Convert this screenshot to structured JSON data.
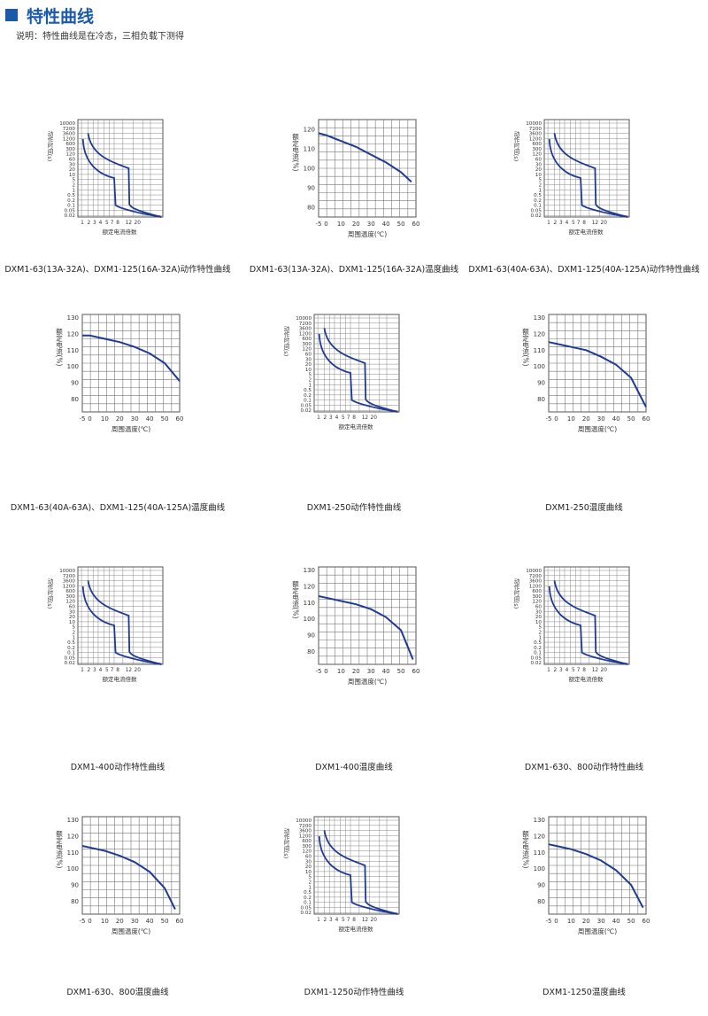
{
  "header": {
    "title": "特性曲线"
  },
  "subtitle": "说明：特性曲线是在冷态，三相负载下测得",
  "trip_axis": {
    "y_ticks": [
      "10000",
      "7200",
      "3600",
      "1200",
      "600",
      "300",
      "120",
      "60",
      "30",
      "20",
      "10",
      "5",
      "2",
      "1",
      "0.5",
      "0.2",
      "0.1",
      "0.05",
      "0.02"
    ],
    "y_label": "动作时间(s)",
    "x_ticks": [
      "1",
      "2",
      "3",
      "4",
      "5",
      "7",
      "8",
      "12",
      "20"
    ],
    "x_label": "额定电流倍数"
  },
  "temp_axis": {
    "x_label": "周围温度(℃)",
    "y_label": "额定电流(%)"
  },
  "panels": [
    {
      "type": "trip",
      "caption": "DXM1-63(13A-32A)、DXM1-125(16A-32A)动作特性曲线",
      "x_ticks": [
        "1",
        "2",
        "3",
        "4",
        "5",
        "7",
        "8",
        "12",
        "20"
      ],
      "y_ticks": [
        "10000",
        "7200",
        "3600",
        "1200",
        "600",
        "300",
        "120",
        "60",
        "30",
        "20",
        "10",
        "5",
        "2",
        "1",
        "0.5",
        "0.2",
        "0.1",
        "0.05",
        "0.02"
      ]
    },
    {
      "type": "temp",
      "caption": "DXM1-63(13A-32A)、DXM1-125(16A-32A)温度曲线",
      "x_ticks": [
        "-5",
        "0",
        "10",
        "20",
        "30",
        "40",
        "50",
        "60"
      ],
      "y_ticks": [
        "120",
        "110",
        "100",
        "90",
        "80"
      ],
      "chart_data": {
        "type": "line",
        "x": [
          -5,
          0,
          10,
          20,
          30,
          40,
          50,
          57
        ],
        "y": [
          118,
          117,
          114,
          111,
          107,
          103,
          98,
          93
        ],
        "xlim": [
          -5,
          60
        ],
        "ylim": [
          75,
          125
        ]
      }
    },
    {
      "type": "trip",
      "caption": "DXM1-63(40A-63A)、DXM1-125(40A-125A)动作特性曲线",
      "x_ticks": [
        "1",
        "2",
        "3",
        "4",
        "5",
        "7",
        "8",
        "12",
        "20"
      ],
      "y_ticks": [
        "10000",
        "7200",
        "3600",
        "1200",
        "600",
        "300",
        "120",
        "60",
        "30",
        "20",
        "10",
        "5",
        "2",
        "1",
        "0.5",
        "0.2",
        "0.1",
        "0.05",
        "0.02"
      ]
    },
    {
      "type": "temp",
      "caption": "DXM1-63(40A-63A)、DXM1-125(40A-125A)温度曲线",
      "x_ticks": [
        "-5",
        "0",
        "10",
        "20",
        "30",
        "40",
        "50",
        "60"
      ],
      "y_ticks": [
        "130",
        "120",
        "110",
        "100",
        "90",
        "80"
      ],
      "chart_data": {
        "type": "line",
        "x": [
          -5,
          0,
          10,
          20,
          30,
          40,
          50,
          60
        ],
        "y": [
          119,
          119,
          117,
          115,
          112,
          108,
          102,
          91
        ],
        "xlim": [
          -5,
          60
        ],
        "ylim": [
          72,
          132
        ]
      }
    },
    {
      "type": "trip",
      "caption": "DXM1-250动作特性曲线",
      "x_ticks": [
        "1",
        "2",
        "3",
        "4",
        "5",
        "7",
        "8",
        "12",
        "20"
      ],
      "y_ticks": [
        "10000",
        "7200",
        "3600",
        "1200",
        "600",
        "300",
        "120",
        "60",
        "30",
        "20",
        "10",
        "5",
        "2",
        "1",
        "0.5",
        "0.2",
        "0.1",
        "0.05",
        "0.02"
      ]
    },
    {
      "type": "temp",
      "caption": "DXM1-250温度曲线",
      "x_ticks": [
        "-5",
        "0",
        "10",
        "20",
        "30",
        "40",
        "50",
        "60"
      ],
      "y_ticks": [
        "130",
        "120",
        "110",
        "100",
        "90",
        "80"
      ],
      "chart_data": {
        "type": "line",
        "x": [
          -5,
          0,
          10,
          20,
          30,
          40,
          50,
          60
        ],
        "y": [
          115,
          114,
          112,
          110,
          106,
          101,
          93,
          75
        ],
        "xlim": [
          -5,
          60
        ],
        "ylim": [
          72,
          132
        ]
      }
    },
    {
      "type": "trip",
      "caption": "DXM1-400动作特性曲线",
      "x_ticks": [
        "1",
        "2",
        "3",
        "4",
        "5",
        "7",
        "8",
        "12",
        "20"
      ],
      "y_ticks": [
        "10000",
        "7200",
        "3600",
        "1200",
        "600",
        "300",
        "120",
        "60",
        "30",
        "20",
        "10",
        "5",
        "2",
        "1",
        "0.5",
        "0.2",
        "0.1",
        "0.05",
        "0.02"
      ]
    },
    {
      "type": "temp",
      "caption": "DXM1-400温度曲线",
      "x_ticks": [
        "-5",
        "0",
        "10",
        "20",
        "30",
        "40",
        "50",
        "60"
      ],
      "y_ticks": [
        "130",
        "120",
        "110",
        "100",
        "90",
        "80"
      ],
      "chart_data": {
        "type": "line",
        "x": [
          -5,
          0,
          10,
          20,
          30,
          40,
          50,
          58
        ],
        "y": [
          114,
          113,
          111,
          109,
          106,
          101,
          93,
          75
        ],
        "xlim": [
          -5,
          60
        ],
        "ylim": [
          72,
          132
        ]
      }
    },
    {
      "type": "trip",
      "caption": "DXM1-630、800动作特性曲线",
      "x_ticks": [
        "1",
        "2",
        "3",
        "4",
        "5",
        "7",
        "8",
        "12",
        "20"
      ],
      "y_ticks": [
        "10000",
        "7200",
        "3600",
        "1200",
        "600",
        "300",
        "120",
        "60",
        "30",
        "20",
        "10",
        "5",
        "2",
        "1",
        "0.5",
        "0.2",
        "0.1",
        "0.05",
        "0.02"
      ]
    },
    {
      "type": "temp",
      "caption": "DXM1-630、800温度曲线",
      "x_ticks": [
        "-5",
        "0",
        "10",
        "20",
        "30",
        "40",
        "50",
        "60"
      ],
      "y_ticks": [
        "130",
        "120",
        "110",
        "100",
        "90",
        "80"
      ],
      "chart_data": {
        "type": "line",
        "x": [
          -5,
          0,
          10,
          20,
          30,
          40,
          50,
          57
        ],
        "y": [
          114,
          113,
          111,
          108,
          104,
          98,
          88,
          75
        ],
        "xlim": [
          -5,
          60
        ],
        "ylim": [
          72,
          132
        ]
      }
    },
    {
      "type": "trip",
      "caption": "DXM1-1250动作特性曲线",
      "x_ticks": [
        "1",
        "2",
        "3",
        "4",
        "5",
        "7",
        "8",
        "12",
        "20"
      ],
      "y_ticks": [
        "10000",
        "7200",
        "3600",
        "1200",
        "600",
        "300",
        "120",
        "60",
        "30",
        "20",
        "10",
        "5",
        "2",
        "1",
        "0.5",
        "0.2",
        "0.1",
        "0.05",
        "0.02"
      ]
    },
    {
      "type": "temp",
      "caption": "DXM1-1250温度曲线",
      "x_ticks": [
        "-5",
        "0",
        "10",
        "20",
        "30",
        "40",
        "50",
        "60"
      ],
      "y_ticks": [
        "130",
        "120",
        "110",
        "100",
        "90",
        "80"
      ],
      "chart_data": {
        "type": "line",
        "x": [
          -5,
          0,
          10,
          20,
          30,
          40,
          50,
          58
        ],
        "y": [
          115,
          114,
          112,
          109,
          105,
          99,
          90,
          76
        ],
        "xlim": [
          -5,
          60
        ],
        "ylim": [
          72,
          132
        ]
      }
    }
  ]
}
